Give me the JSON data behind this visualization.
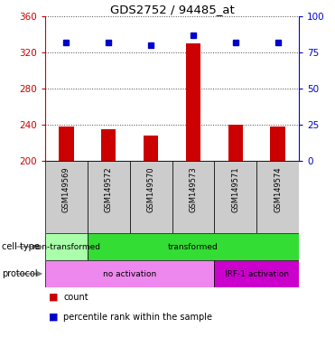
{
  "title": "GDS2752 / 94485_at",
  "samples": [
    "GSM149569",
    "GSM149572",
    "GSM149570",
    "GSM149573",
    "GSM149571",
    "GSM149574"
  ],
  "counts": [
    238,
    235,
    228,
    330,
    240,
    238
  ],
  "percentile_ranks": [
    82,
    82,
    80,
    87,
    82,
    82
  ],
  "ymin": 200,
  "ymax": 360,
  "yticks_left": [
    200,
    240,
    280,
    320,
    360
  ],
  "yticks_right": [
    0,
    25,
    50,
    75,
    100
  ],
  "cell_type_groups": [
    {
      "label": "non-transformed",
      "start": 0,
      "end": 1,
      "color": "#aaffaa"
    },
    {
      "label": "transformed",
      "start": 1,
      "end": 6,
      "color": "#33dd33"
    }
  ],
  "protocol_groups": [
    {
      "label": "no activation",
      "start": 0,
      "end": 4,
      "color": "#ee88ee"
    },
    {
      "label": "IRF-1 activation",
      "start": 4,
      "end": 6,
      "color": "#cc00cc"
    }
  ],
  "bar_color": "#cc0000",
  "dot_color": "#0000cc",
  "sample_bg_color": "#cccccc",
  "grid_color": "#444444",
  "left_axis_color": "#cc0000",
  "right_axis_color": "#0000cc",
  "legend_count_color": "#cc0000",
  "legend_pct_color": "#0000cc"
}
